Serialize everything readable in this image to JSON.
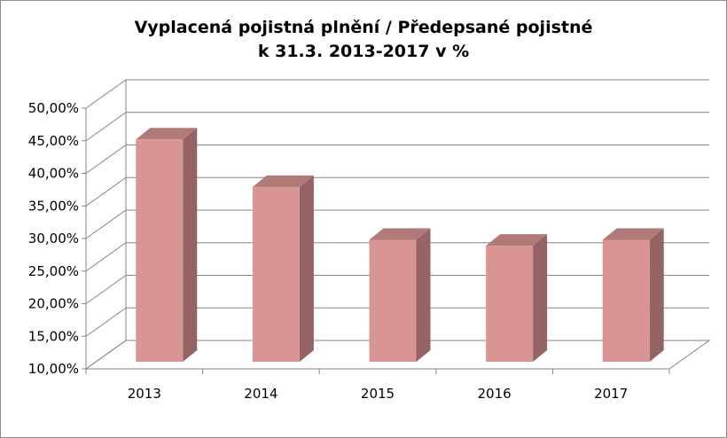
{
  "chart_data": {
    "type": "bar",
    "title": "Vyplacená pojistná plnění / Předepsané pojistné",
    "subtitle": "k 31.3. 2013-2017 v %",
    "categories": [
      "2013",
      "2014",
      "2015",
      "2016",
      "2017"
    ],
    "series": [
      {
        "values": [
          45.2,
          37.9,
          29.8,
          28.9,
          29.8
        ]
      }
    ],
    "ylim": [
      10,
      50
    ],
    "y_ticks": [
      "10,00%",
      "15,00%",
      "20,00%",
      "25,00%",
      "30,00%",
      "35,00%",
      "40,00%",
      "45,00%",
      "50,00%"
    ],
    "grid": true,
    "three_d": true,
    "legend": "none",
    "colors": {
      "bar_front": "#d99594",
      "bar_side": "#956363",
      "bar_top": "#b07a79",
      "grid": "#868686"
    }
  }
}
